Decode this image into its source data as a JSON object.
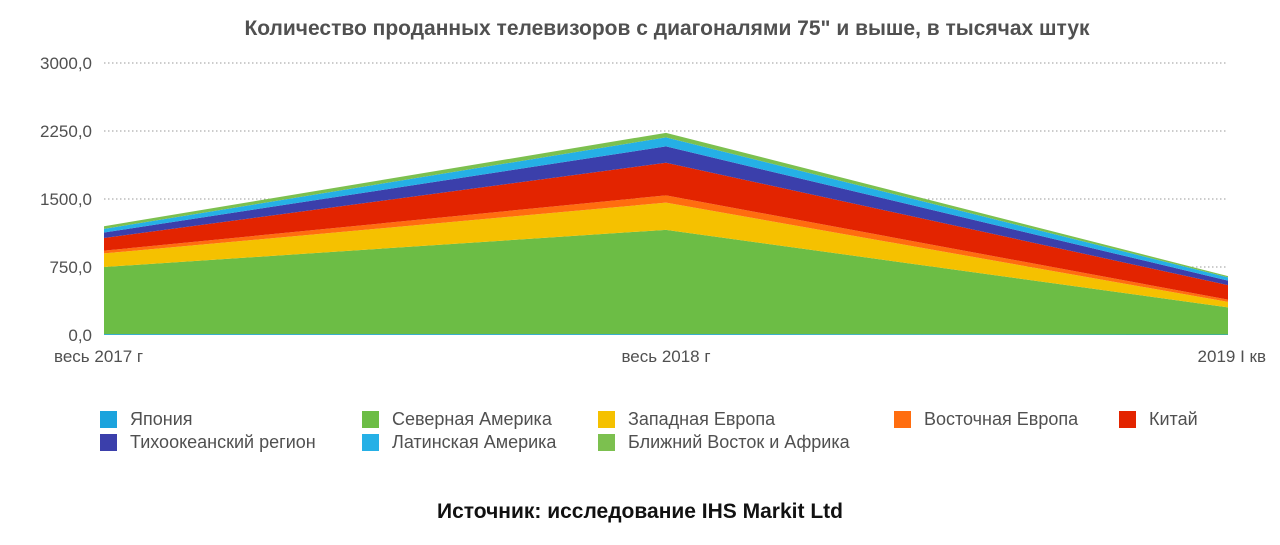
{
  "chart_data": {
    "type": "area",
    "stacked": true,
    "title": "Количество проданных телевизоров с диагоналями 75\" и выше, в тысячах штук",
    "categories": [
      "весь 2017 г",
      "весь 2018 г",
      "2019 I кв"
    ],
    "ylim": [
      0,
      3000
    ],
    "yticks": [
      "0,0",
      "750,0",
      "1500,0",
      "2250,0",
      "3000,0"
    ],
    "ytick_values": [
      0,
      750,
      1500,
      2250,
      3000
    ],
    "grid": true,
    "legend_position": "bottom",
    "series": [
      {
        "name": "Япония",
        "color": "#1ba3dd",
        "values": [
          10,
          10,
          5
        ]
      },
      {
        "name": "Северная Америка",
        "color": "#6cbd45",
        "values": [
          740,
          1150,
          300
        ]
      },
      {
        "name": "Западная Европа",
        "color": "#f5c100",
        "values": [
          150,
          300,
          60
        ]
      },
      {
        "name": "Восточная Европа",
        "color": "#ff6d0f",
        "values": [
          30,
          80,
          25
        ]
      },
      {
        "name": "Китай",
        "color": "#e32400",
        "values": [
          140,
          360,
          160
        ]
      },
      {
        "name": "Тихоокеанский регион",
        "color": "#3b3fab",
        "values": [
          60,
          180,
          50
        ]
      },
      {
        "name": "Латинская Америка",
        "color": "#25b0e6",
        "values": [
          40,
          100,
          35
        ]
      },
      {
        "name": "Ближний Восток и Африка",
        "color": "#7cc04f",
        "values": [
          30,
          50,
          15
        ]
      }
    ]
  },
  "legend_order": [
    0,
    1,
    2,
    3,
    4,
    5,
    6,
    7
  ],
  "source": "Источник: исследование  IHS Markit Ltd"
}
